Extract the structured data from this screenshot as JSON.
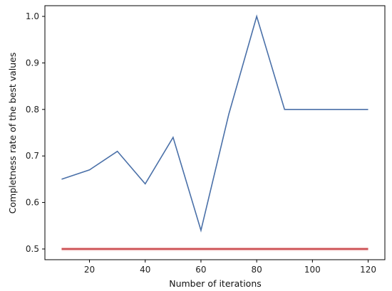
{
  "chart_data": {
    "type": "line",
    "xlabel": "Number of iterations",
    "ylabel": "Completness rate of the best values",
    "xlim": [
      4,
      126
    ],
    "ylim": [
      0.477,
      1.023
    ],
    "grid": false,
    "x_ticks": [
      20,
      40,
      60,
      80,
      100,
      120
    ],
    "y_ticks": [
      0.5,
      0.6,
      0.7,
      0.8,
      0.9,
      1.0
    ],
    "y_tick_labels": [
      "0.5",
      "0.6",
      "0.7",
      "0.8",
      "0.9",
      "1.0"
    ],
    "series": [
      {
        "color": "#4a70a8",
        "x": [
          10,
          20,
          30,
          40,
          50,
          60,
          70,
          80,
          90,
          100,
          110,
          120
        ],
        "y": [
          0.65,
          0.67,
          0.71,
          0.64,
          0.74,
          0.54,
          0.79,
          1.0,
          0.8,
          0.8,
          0.8,
          0.8
        ]
      },
      {
        "color": "#c0282d",
        "x": [
          10,
          120
        ],
        "y": [
          0.5,
          0.5
        ]
      }
    ]
  }
}
